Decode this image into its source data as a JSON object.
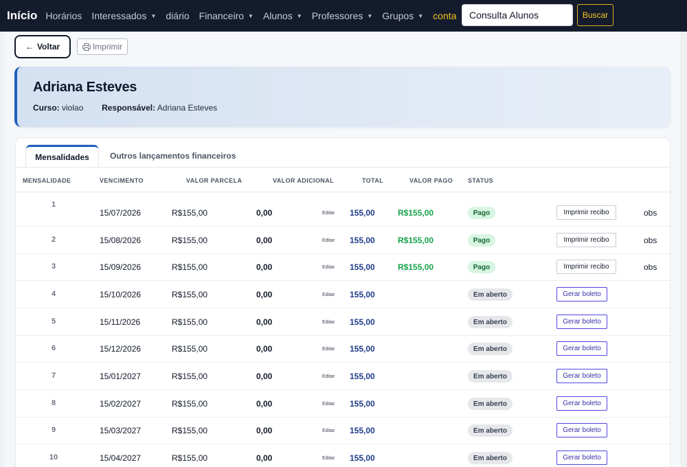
{
  "navbar": {
    "brand": "Início",
    "items": [
      {
        "label": "Horários",
        "dropdown": false
      },
      {
        "label": "Interessados",
        "dropdown": true
      },
      {
        "label": "diário",
        "dropdown": false
      },
      {
        "label": "Financeiro",
        "dropdown": true
      },
      {
        "label": "Alunos",
        "dropdown": true
      },
      {
        "label": "Professores",
        "dropdown": true
      },
      {
        "label": "Grupos",
        "dropdown": true
      },
      {
        "label": "conta",
        "dropdown": false
      }
    ],
    "search_value": "Consulta Alunos",
    "search_button": "Buscar",
    "accent_color": "#f5c518"
  },
  "actions": {
    "back_label": "Voltar",
    "print_label": "Imprimir"
  },
  "student": {
    "name": "Adriana Esteves",
    "course_label": "Curso:",
    "course_value": "violao",
    "responsible_label": "Responsável:",
    "responsible_value": "Adriana Esteves"
  },
  "tabs": {
    "active": "Mensalidades",
    "other": "Outros lançamentos financeiros"
  },
  "table": {
    "headers": {
      "mensalidade": "MENSALIDADE",
      "vencimento": "VENCIMENTO",
      "valor_parcela": "VALOR PARCELA",
      "valor_adicional": "VALOR ADICIONAL",
      "total": "TOTAL",
      "valor_pago": "VALOR PAGO",
      "status": "STATUS"
    },
    "edit_label": "Editar",
    "receipt_label": "Imprimir recibo",
    "boleto_label": "Gerar boleto",
    "obs_label": "obs",
    "rows": [
      {
        "num": "1",
        "due": "15/07/2026",
        "value": "R$155,00",
        "extra": "0,00",
        "total": "155,00",
        "paid": "R$155,00",
        "status": "Pago"
      },
      {
        "num": "2",
        "due": "15/08/2026",
        "value": "R$155,00",
        "extra": "0,00",
        "total": "155,00",
        "paid": "R$155,00",
        "status": "Pago"
      },
      {
        "num": "3",
        "due": "15/09/2026",
        "value": "R$155,00",
        "extra": "0,00",
        "total": "155,00",
        "paid": "R$155,00",
        "status": "Pago"
      },
      {
        "num": "4",
        "due": "15/10/2026",
        "value": "R$155,00",
        "extra": "0,00",
        "total": "155,00",
        "paid": "",
        "status": "Em aberto"
      },
      {
        "num": "5",
        "due": "15/11/2026",
        "value": "R$155,00",
        "extra": "0,00",
        "total": "155,00",
        "paid": "",
        "status": "Em aberto"
      },
      {
        "num": "6",
        "due": "15/12/2026",
        "value": "R$155,00",
        "extra": "0,00",
        "total": "155,00",
        "paid": "",
        "status": "Em aberto"
      },
      {
        "num": "7",
        "due": "15/01/2027",
        "value": "R$155,00",
        "extra": "0,00",
        "total": "155,00",
        "paid": "",
        "status": "Em aberto"
      },
      {
        "num": "8",
        "due": "15/02/2027",
        "value": "R$155,00",
        "extra": "0,00",
        "total": "155,00",
        "paid": "",
        "status": "Em aberto"
      },
      {
        "num": "9",
        "due": "15/03/2027",
        "value": "R$155,00",
        "extra": "0,00",
        "total": "155,00",
        "paid": "",
        "status": "Em aberto"
      },
      {
        "num": "10",
        "due": "15/04/2027",
        "value": "R$155,00",
        "extra": "0,00",
        "total": "155,00",
        "paid": "",
        "status": "Em aberto"
      }
    ]
  }
}
